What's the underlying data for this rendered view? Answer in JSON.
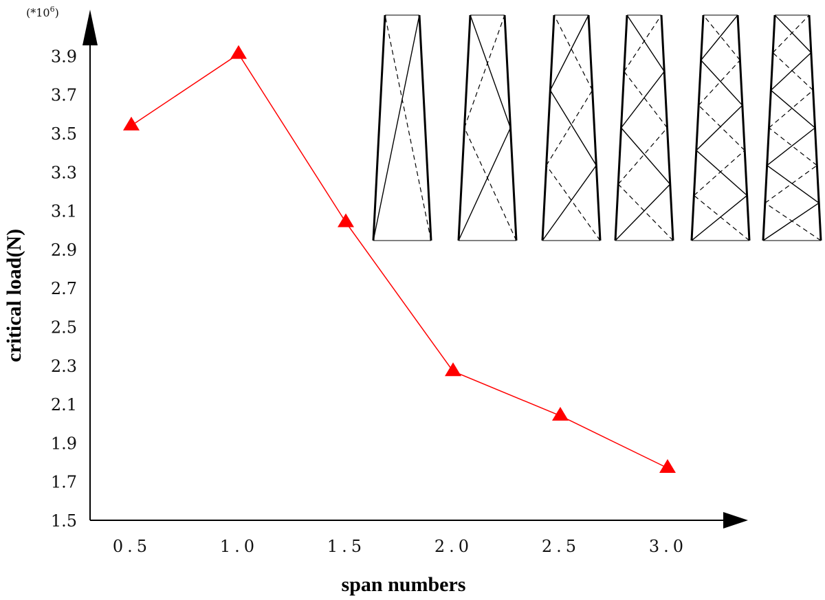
{
  "chart_data": {
    "type": "line",
    "title": "",
    "xlabel": "span numbers",
    "ylabel": "critical load(N)",
    "y_multiplier_label": "(*10",
    "y_multiplier_exp": "6",
    "y_multiplier_close": ")",
    "x_ticks": [
      "0.5",
      "1.0",
      "1.5",
      "2.0",
      "2.5",
      "3.0"
    ],
    "y_ticks": [
      "1.5",
      "1.7",
      "1.9",
      "2.1",
      "2.3",
      "2.5",
      "2.7",
      "2.9",
      "3.1",
      "3.3",
      "3.5",
      "3.7",
      "3.9"
    ],
    "ylim": [
      1.5,
      4.1
    ],
    "grid": false,
    "legend": "none",
    "series": [
      {
        "marker": "triangle",
        "color": "#ff0000",
        "x": [
          0.5,
          1.0,
          1.5,
          2.0,
          2.5,
          3.0
        ],
        "y": [
          3.54,
          3.91,
          3.04,
          2.27,
          2.04,
          1.77
        ]
      }
    ],
    "inset_diagrams": [
      {
        "panels": 1,
        "rows": 1
      },
      {
        "panels": 2,
        "rows": 2
      },
      {
        "panels": 3,
        "rows": 3
      },
      {
        "panels": 4,
        "rows": 4
      },
      {
        "panels": 5,
        "rows": 5
      },
      {
        "panels": 6,
        "rows": 6
      }
    ]
  }
}
